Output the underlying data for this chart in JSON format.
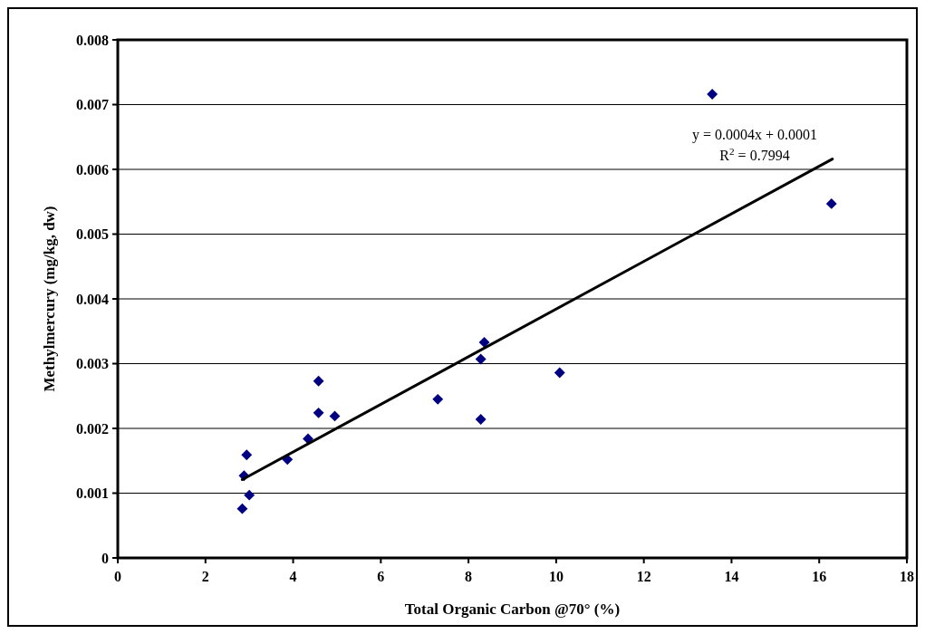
{
  "chart_data": {
    "type": "scatter",
    "xlabel": "Total Organic Carbon @70° (%)",
    "ylabel": "Methylmercury (mg/kg, dw)",
    "xlim": [
      0,
      18
    ],
    "xticks": [
      0,
      2,
      4,
      6,
      8,
      10,
      12,
      14,
      16,
      18
    ],
    "ylim": [
      0,
      0.008
    ],
    "yticks": [
      0,
      0.001,
      0.002,
      0.003,
      0.004,
      0.005,
      0.006,
      0.007,
      0.008
    ],
    "grid": "y",
    "series": [
      {
        "color": "#000080",
        "marker": "diamond",
        "x": [
          2.84,
          2.88,
          2.94,
          3.0,
          3.87,
          4.34,
          4.58,
          4.58,
          4.95,
          7.3,
          8.28,
          8.36,
          8.28,
          10.08,
          13.56,
          16.28
        ],
        "values": [
          0.00076,
          0.00127,
          0.00159,
          0.00097,
          0.00152,
          0.00184,
          0.00273,
          0.00224,
          0.00219,
          0.00245,
          0.00307,
          0.00333,
          0.00214,
          0.00286,
          0.00716,
          0.00547
        ]
      },
      {
        "type": "line",
        "color": "#000000",
        "marker": "none",
        "line_style": "solid",
        "x": [
          2.84,
          16.3
        ],
        "values": [
          0.00121,
          0.00616
        ]
      }
    ],
    "annotations": [
      "y = 0.0004x + 0.0001",
      "R$^{2}$ = 0.7994"
    ]
  }
}
